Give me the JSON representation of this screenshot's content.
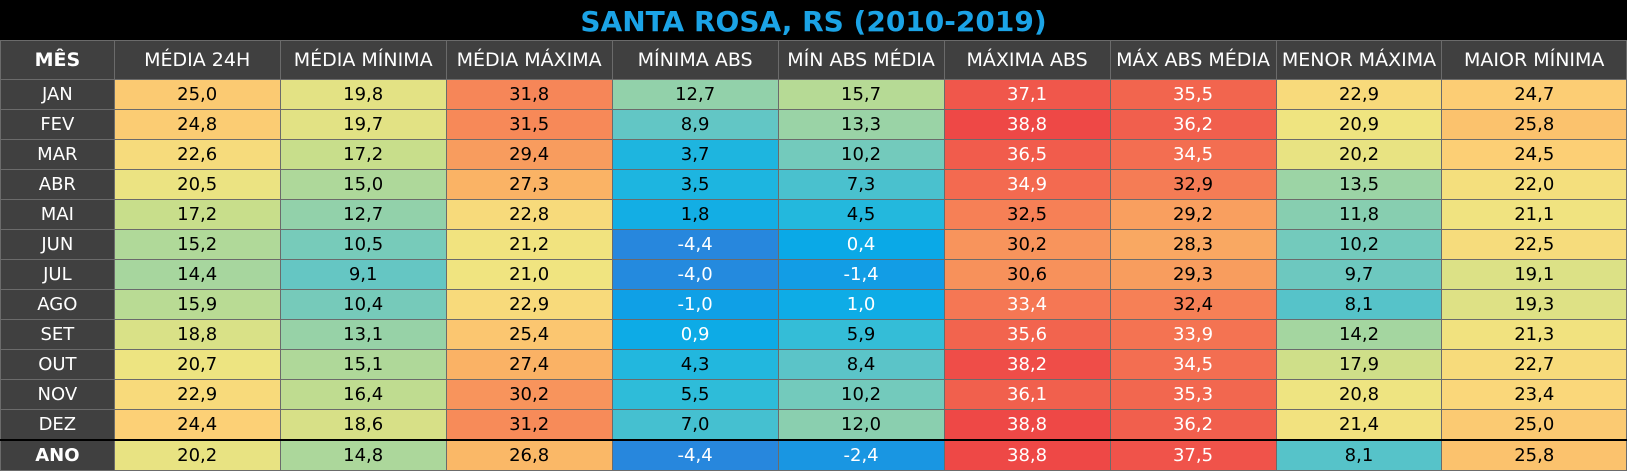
{
  "title": "SANTA ROSA, RS (2010-2019)",
  "headers": [
    "MÊS",
    "MÉDIA 24H",
    "MÉDIA MÍNIMA",
    "MÉDIA MÁXIMA",
    "MÍNIMA ABS",
    "MÍN ABS MÉDIA",
    "MÁXIMA ABS",
    "MÁX ABS MÉDIA",
    "MENOR MÁXIMA",
    "MAIOR MÍNIMA"
  ],
  "rows": [
    {
      "month": "JAN",
      "values": [
        "25,0",
        "19,8",
        "31,8",
        "12,7",
        "15,7",
        "37,1",
        "35,5",
        "22,9",
        "24,7"
      ]
    },
    {
      "month": "FEV",
      "values": [
        "24,8",
        "19,7",
        "31,5",
        "8,9",
        "13,3",
        "38,8",
        "36,2",
        "20,9",
        "25,8"
      ]
    },
    {
      "month": "MAR",
      "values": [
        "22,6",
        "17,2",
        "29,4",
        "3,7",
        "10,2",
        "36,5",
        "34,5",
        "20,2",
        "24,5"
      ]
    },
    {
      "month": "ABR",
      "values": [
        "20,5",
        "15,0",
        "27,3",
        "3,5",
        "7,3",
        "34,9",
        "32,9",
        "13,5",
        "22,0"
      ]
    },
    {
      "month": "MAI",
      "values": [
        "17,2",
        "12,7",
        "22,8",
        "1,8",
        "4,5",
        "32,5",
        "29,2",
        "11,8",
        "21,1"
      ]
    },
    {
      "month": "JUN",
      "values": [
        "15,2",
        "10,5",
        "21,2",
        "-4,4",
        "0,4",
        "30,2",
        "28,3",
        "10,2",
        "22,5"
      ]
    },
    {
      "month": "JUL",
      "values": [
        "14,4",
        "9,1",
        "21,0",
        "-4,0",
        "-1,4",
        "30,6",
        "29,3",
        "9,7",
        "19,1"
      ]
    },
    {
      "month": "AGO",
      "values": [
        "15,9",
        "10,4",
        "22,9",
        "-1,0",
        "1,0",
        "33,4",
        "32,4",
        "8,1",
        "19,3"
      ]
    },
    {
      "month": "SET",
      "values": [
        "18,8",
        "13,1",
        "25,4",
        "0,9",
        "5,9",
        "35,6",
        "33,9",
        "14,2",
        "21,3"
      ]
    },
    {
      "month": "OUT",
      "values": [
        "20,7",
        "15,1",
        "27,4",
        "4,3",
        "8,4",
        "38,2",
        "34,5",
        "17,9",
        "22,7"
      ]
    },
    {
      "month": "NOV",
      "values": [
        "22,9",
        "16,4",
        "30,2",
        "5,5",
        "10,2",
        "36,1",
        "35,3",
        "20,8",
        "23,4"
      ]
    },
    {
      "month": "DEZ",
      "values": [
        "24,4",
        "18,6",
        "31,2",
        "7,0",
        "12,0",
        "38,8",
        "36,2",
        "21,4",
        "25,0"
      ]
    }
  ],
  "total": {
    "month": "ANO",
    "values": [
      "20,2",
      "14,8",
      "26,8",
      "-4,4",
      "-2,4",
      "38,8",
      "37,5",
      "8,1",
      "25,8"
    ]
  },
  "colors": {
    "title": "#1ba3e6",
    "header_bg": "#404040"
  }
}
